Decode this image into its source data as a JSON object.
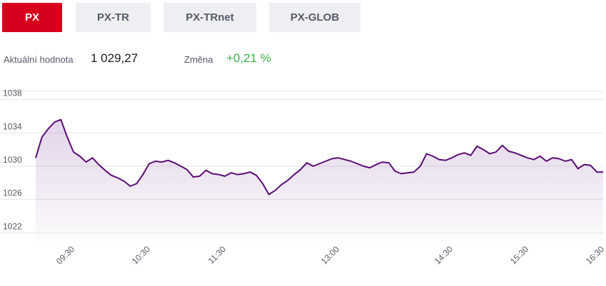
{
  "tabs": [
    {
      "label": "PX",
      "active": true
    },
    {
      "label": "PX-TR",
      "active": false
    },
    {
      "label": "PX-TRnet",
      "active": false
    },
    {
      "label": "PX-GLOB",
      "active": false
    }
  ],
  "stats": {
    "current_label": "Aktuální hodnota",
    "current_value": "1 029,27",
    "change_label": "Změna",
    "change_value": "+0,21 %"
  },
  "colors": {
    "accent": "#d7001c",
    "line": "#5a0d73",
    "positive": "#3bb54a",
    "tab_bg": "#eeeff3"
  },
  "chart_data": {
    "type": "area",
    "y_ticks": [
      1022,
      1026,
      1030,
      1034,
      1038
    ],
    "x_ticks": [
      "09:30",
      "10:30",
      "11:30",
      "13:00",
      "14:30",
      "15:30",
      "16:30"
    ],
    "ylim": [
      1021,
      1039
    ],
    "grid": true,
    "x": [
      "09:00",
      "09:05",
      "09:10",
      "09:15",
      "09:20",
      "09:25",
      "09:30",
      "09:35",
      "09:40",
      "09:45",
      "09:50",
      "09:55",
      "10:00",
      "10:05",
      "10:10",
      "10:15",
      "10:20",
      "10:25",
      "10:30",
      "10:35",
      "10:40",
      "10:45",
      "10:50",
      "10:55",
      "11:00",
      "11:05",
      "11:10",
      "11:15",
      "11:20",
      "11:25",
      "11:30",
      "11:35",
      "11:40",
      "11:45",
      "11:50",
      "11:55",
      "12:00",
      "12:05",
      "12:10",
      "12:15",
      "12:20",
      "12:25",
      "12:30",
      "12:35",
      "12:40",
      "12:45",
      "12:50",
      "12:55",
      "13:00",
      "13:05",
      "13:10",
      "13:15",
      "13:20",
      "13:25",
      "13:30",
      "13:35",
      "13:40",
      "13:45",
      "13:50",
      "13:55",
      "14:00",
      "14:05",
      "14:10",
      "14:15",
      "14:20",
      "14:25",
      "14:30",
      "14:35",
      "14:40",
      "14:45",
      "14:50",
      "14:55",
      "15:00",
      "15:05",
      "15:10",
      "15:15",
      "15:20",
      "15:25",
      "15:30",
      "15:35",
      "15:40",
      "15:45",
      "15:50",
      "15:55",
      "16:00",
      "16:05",
      "16:10",
      "16:15",
      "16:20",
      "16:25",
      "16:30"
    ],
    "values": [
      1031.0,
      1033.5,
      1034.5,
      1035.3,
      1035.6,
      1033.5,
      1031.7,
      1031.2,
      1030.5,
      1031.0,
      1030.2,
      1029.5,
      1028.9,
      1028.6,
      1028.2,
      1027.6,
      1027.9,
      1029.0,
      1030.3,
      1030.6,
      1030.5,
      1030.7,
      1030.4,
      1030.0,
      1029.6,
      1028.7,
      1028.8,
      1029.5,
      1029.1,
      1029.0,
      1028.8,
      1029.2,
      1029.0,
      1029.1,
      1029.3,
      1028.9,
      1027.9,
      1026.6,
      1027.1,
      1027.8,
      1028.3,
      1029.0,
      1029.6,
      1030.4,
      1030.0,
      1030.3,
      1030.6,
      1030.9,
      1031.0,
      1030.8,
      1030.6,
      1030.3,
      1030.0,
      1029.8,
      1030.2,
      1030.5,
      1030.4,
      1029.4,
      1029.1,
      1029.2,
      1029.3,
      1030.0,
      1031.5,
      1031.2,
      1030.8,
      1030.7,
      1031.0,
      1031.4,
      1031.6,
      1031.3,
      1032.4,
      1032.0,
      1031.5,
      1031.7,
      1032.5,
      1031.8,
      1031.6,
      1031.3,
      1031.0,
      1030.8,
      1031.2,
      1030.6,
      1031.0,
      1030.9,
      1030.6,
      1030.8,
      1029.7,
      1030.2,
      1030.1,
      1029.3,
      1029.3
    ]
  }
}
